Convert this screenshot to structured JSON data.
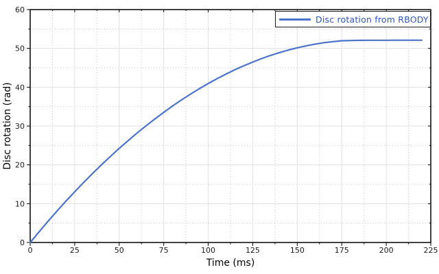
{
  "figure": {
    "background": "#ffffff",
    "frame_color": "#000000",
    "grid_major_color": "#e0e0e0",
    "grid_minor_color": "#c8c8c8",
    "tick_color": "#000000",
    "tick_label_color": "#1a1a1a",
    "legend_text_color": "#2f55c2",
    "legend_border_color": "#1c1c1c"
  },
  "chart_data": {
    "type": "line",
    "title": "",
    "xlabel": "Time (ms)",
    "ylabel": "Disc rotation (rad)",
    "xlim": [
      0,
      225
    ],
    "ylim": [
      0,
      60
    ],
    "xticks": [
      0,
      25,
      50,
      75,
      100,
      125,
      150,
      175,
      200,
      225
    ],
    "yticks": [
      0,
      10,
      20,
      30,
      40,
      50,
      60
    ],
    "x_minor_step": 12.5,
    "y_minor_step": 5,
    "grid": "major solid, minor dotted",
    "legend_position": "top-right",
    "series": [
      {
        "name": "Disc rotation from RBODY",
        "color": "#4a72c8",
        "x": [
          0,
          5,
          10,
          15,
          20,
          25,
          30,
          35,
          40,
          45,
          50,
          55,
          60,
          65,
          70,
          75,
          80,
          85,
          90,
          95,
          100,
          105,
          110,
          115,
          120,
          125,
          130,
          135,
          140,
          145,
          150,
          155,
          160,
          165,
          170,
          175,
          180,
          185,
          190,
          195,
          200,
          205,
          210,
          215,
          220
        ],
        "y": [
          0,
          2.76,
          5.45,
          8.06,
          10.6,
          13.06,
          15.45,
          17.76,
          20.0,
          22.15,
          24.24,
          26.25,
          28.18,
          30.04,
          31.82,
          33.53,
          35.17,
          36.72,
          38.21,
          39.62,
          40.95,
          42.21,
          43.39,
          44.5,
          45.53,
          46.49,
          47.38,
          48.19,
          48.92,
          49.58,
          50.16,
          50.67,
          51.11,
          51.47,
          51.75,
          51.97,
          52.03,
          52.08,
          52.1,
          52.1,
          52.1,
          52.11,
          52.11,
          52.12,
          52.12
        ]
      }
    ]
  }
}
